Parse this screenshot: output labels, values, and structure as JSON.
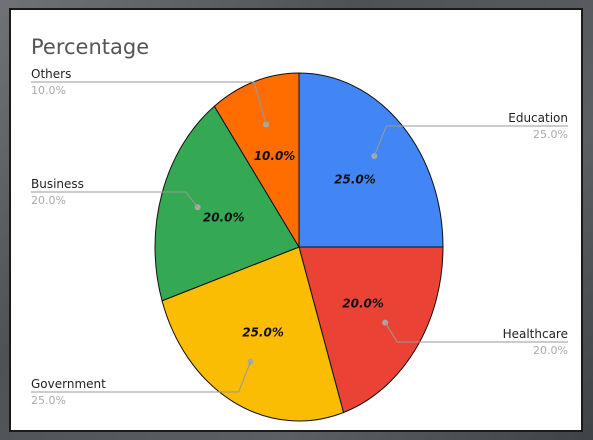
{
  "chart_data": {
    "type": "pie",
    "title": "Percentage",
    "slices": [
      {
        "label": "Education",
        "value": 25.0,
        "display": "25.0%",
        "color": "#4285f4"
      },
      {
        "label": "Healthcare",
        "value": 20.0,
        "display": "20.0%",
        "color": "#ea4335"
      },
      {
        "label": "Government",
        "value": 25.0,
        "display": "25.0%",
        "color": "#fbbc04"
      },
      {
        "label": "Business",
        "value": 20.0,
        "display": "20.0%",
        "color": "#34a853"
      },
      {
        "label": "Others",
        "value": 10.0,
        "display": "10.0%",
        "color": "#ff6d01"
      }
    ]
  }
}
